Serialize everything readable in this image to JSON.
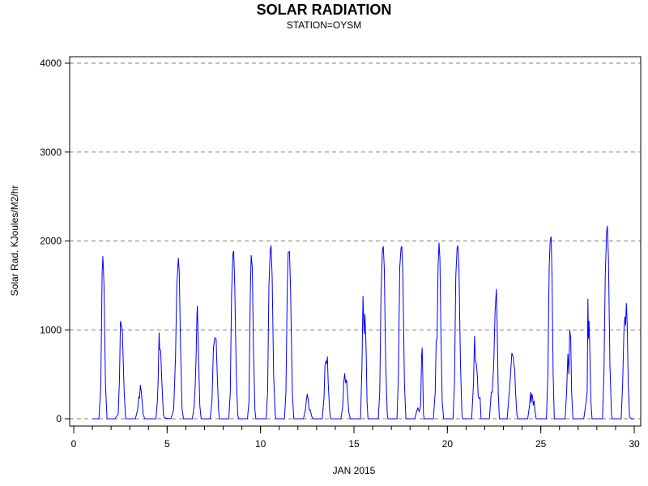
{
  "chart_data": {
    "type": "line",
    "title": "SOLAR RADIATION",
    "subtitle": "STATION=OYSM",
    "xlabel": "JAN 2015",
    "ylabel": "Solar Rad. KJoules/M2/hr",
    "xlim": [
      0,
      30
    ],
    "ylim": [
      0,
      4000
    ],
    "x_ticks": [
      0,
      5,
      10,
      15,
      20,
      25,
      30
    ],
    "y_ticks": [
      0,
      1000,
      2000,
      3000,
      4000
    ],
    "grid": "horizontal-dashed",
    "line_color": "#0000ff",
    "series": [
      {
        "points": [
          [
            1.0,
            0
          ],
          [
            1.35,
            0
          ],
          [
            1.45,
            350
          ],
          [
            1.52,
            1650
          ],
          [
            1.56,
            1830
          ],
          [
            1.62,
            1500
          ],
          [
            1.7,
            400
          ],
          [
            1.78,
            0
          ],
          [
            2.2,
            0
          ],
          [
            2.38,
            50
          ],
          [
            2.45,
            450
          ],
          [
            2.5,
            1100
          ],
          [
            2.55,
            1050
          ],
          [
            2.6,
            1000
          ],
          [
            2.7,
            300
          ],
          [
            2.78,
            0
          ],
          [
            3.3,
            0
          ],
          [
            3.42,
            100
          ],
          [
            3.48,
            250
          ],
          [
            3.52,
            230
          ],
          [
            3.57,
            380
          ],
          [
            3.62,
            300
          ],
          [
            3.72,
            50
          ],
          [
            3.8,
            0
          ],
          [
            4.4,
            0
          ],
          [
            4.48,
            200
          ],
          [
            4.52,
            450
          ],
          [
            4.57,
            970
          ],
          [
            4.6,
            780
          ],
          [
            4.65,
            770
          ],
          [
            4.72,
            400
          ],
          [
            4.8,
            50
          ],
          [
            4.86,
            10
          ],
          [
            5.2,
            0
          ],
          [
            5.35,
            100
          ],
          [
            5.45,
            700
          ],
          [
            5.52,
            1500
          ],
          [
            5.6,
            1810
          ],
          [
            5.65,
            1650
          ],
          [
            5.72,
            800
          ],
          [
            5.8,
            100
          ],
          [
            5.88,
            0
          ],
          [
            6.35,
            0
          ],
          [
            6.45,
            150
          ],
          [
            6.5,
            350
          ],
          [
            6.55,
            700
          ],
          [
            6.6,
            1200
          ],
          [
            6.62,
            1270
          ],
          [
            6.68,
            700
          ],
          [
            6.75,
            150
          ],
          [
            6.82,
            0
          ],
          [
            7.3,
            0
          ],
          [
            7.4,
            200
          ],
          [
            7.48,
            800
          ],
          [
            7.55,
            910
          ],
          [
            7.62,
            900
          ],
          [
            7.68,
            500
          ],
          [
            7.75,
            100
          ],
          [
            7.8,
            0
          ],
          [
            8.3,
            0
          ],
          [
            8.38,
            300
          ],
          [
            8.45,
            1400
          ],
          [
            8.52,
            1850
          ],
          [
            8.56,
            1890
          ],
          [
            8.62,
            1500
          ],
          [
            8.7,
            500
          ],
          [
            8.78,
            50
          ],
          [
            8.82,
            0
          ],
          [
            9.3,
            0
          ],
          [
            9.38,
            200
          ],
          [
            9.45,
            1400
          ],
          [
            9.5,
            1840
          ],
          [
            9.56,
            1700
          ],
          [
            9.62,
            800
          ],
          [
            9.7,
            100
          ],
          [
            9.75,
            0
          ],
          [
            10.3,
            0
          ],
          [
            10.38,
            300
          ],
          [
            10.45,
            1500
          ],
          [
            10.52,
            1900
          ],
          [
            10.56,
            1950
          ],
          [
            10.62,
            1600
          ],
          [
            10.7,
            500
          ],
          [
            10.78,
            50
          ],
          [
            10.82,
            0
          ],
          [
            11.28,
            0
          ],
          [
            11.36,
            300
          ],
          [
            11.43,
            1500
          ],
          [
            11.48,
            1870
          ],
          [
            11.55,
            1880
          ],
          [
            11.6,
            1500
          ],
          [
            11.7,
            300
          ],
          [
            11.78,
            0
          ],
          [
            12.3,
            0
          ],
          [
            12.4,
            100
          ],
          [
            12.45,
            200
          ],
          [
            12.5,
            280
          ],
          [
            12.55,
            220
          ],
          [
            12.6,
            100
          ],
          [
            12.66,
            100
          ],
          [
            12.75,
            20
          ],
          [
            12.82,
            0
          ],
          [
            13.3,
            0
          ],
          [
            13.4,
            250
          ],
          [
            13.45,
            600
          ],
          [
            13.5,
            650
          ],
          [
            13.55,
            620
          ],
          [
            13.58,
            700
          ],
          [
            13.62,
            400
          ],
          [
            13.7,
            80
          ],
          [
            13.75,
            0
          ],
          [
            14.3,
            0
          ],
          [
            14.4,
            150
          ],
          [
            14.45,
            400
          ],
          [
            14.5,
            510
          ],
          [
            14.55,
            400
          ],
          [
            14.6,
            440
          ],
          [
            14.65,
            300
          ],
          [
            14.72,
            80
          ],
          [
            14.8,
            0
          ],
          [
            15.35,
            0
          ],
          [
            15.43,
            600
          ],
          [
            15.48,
            1380
          ],
          [
            15.52,
            1100
          ],
          [
            15.55,
            950
          ],
          [
            15.58,
            1180
          ],
          [
            15.62,
            1000
          ],
          [
            15.66,
            700
          ],
          [
            15.7,
            200
          ],
          [
            15.75,
            0
          ],
          [
            16.3,
            0
          ],
          [
            16.38,
            300
          ],
          [
            16.45,
            1400
          ],
          [
            16.52,
            1900
          ],
          [
            16.57,
            1940
          ],
          [
            16.62,
            1700
          ],
          [
            16.7,
            600
          ],
          [
            16.78,
            50
          ],
          [
            16.82,
            0
          ],
          [
            17.3,
            0
          ],
          [
            17.38,
            500
          ],
          [
            17.45,
            1700
          ],
          [
            17.52,
            1920
          ],
          [
            17.56,
            1940
          ],
          [
            17.62,
            1600
          ],
          [
            17.7,
            400
          ],
          [
            17.78,
            0
          ],
          [
            18.25,
            0
          ],
          [
            18.35,
            80
          ],
          [
            18.42,
            120
          ],
          [
            18.5,
            80
          ],
          [
            18.57,
            150
          ],
          [
            18.62,
            700
          ],
          [
            18.65,
            800
          ],
          [
            18.68,
            500
          ],
          [
            18.72,
            50
          ],
          [
            18.76,
            0
          ],
          [
            19.25,
            0
          ],
          [
            19.35,
            300
          ],
          [
            19.4,
            880
          ],
          [
            19.45,
            900
          ],
          [
            19.5,
            1700
          ],
          [
            19.55,
            1980
          ],
          [
            19.6,
            1800
          ],
          [
            19.65,
            1000
          ],
          [
            19.72,
            200
          ],
          [
            19.8,
            0
          ],
          [
            20.3,
            0
          ],
          [
            20.38,
            400
          ],
          [
            20.45,
            1600
          ],
          [
            20.52,
            1920
          ],
          [
            20.56,
            1950
          ],
          [
            20.62,
            1700
          ],
          [
            20.7,
            600
          ],
          [
            20.78,
            50
          ],
          [
            20.82,
            0
          ],
          [
            21.3,
            0
          ],
          [
            21.4,
            400
          ],
          [
            21.45,
            930
          ],
          [
            21.5,
            650
          ],
          [
            21.55,
            620
          ],
          [
            21.6,
            500
          ],
          [
            21.65,
            250
          ],
          [
            21.7,
            230
          ],
          [
            21.75,
            240
          ],
          [
            21.8,
            0
          ],
          [
            22.25,
            0
          ],
          [
            22.35,
            300
          ],
          [
            22.4,
            300
          ],
          [
            22.48,
            600
          ],
          [
            22.55,
            1200
          ],
          [
            22.62,
            1460
          ],
          [
            22.66,
            1100
          ],
          [
            22.72,
            300
          ],
          [
            22.78,
            0
          ],
          [
            23.2,
            0
          ],
          [
            23.35,
            400
          ],
          [
            23.45,
            740
          ],
          [
            23.52,
            700
          ],
          [
            23.56,
            600
          ],
          [
            23.6,
            560
          ],
          [
            23.65,
            300
          ],
          [
            23.72,
            50
          ],
          [
            23.78,
            0
          ],
          [
            24.3,
            0
          ],
          [
            24.4,
            150
          ],
          [
            24.45,
            300
          ],
          [
            24.48,
            180
          ],
          [
            24.52,
            280
          ],
          [
            24.56,
            250
          ],
          [
            24.6,
            150
          ],
          [
            24.64,
            200
          ],
          [
            24.68,
            100
          ],
          [
            24.75,
            0
          ],
          [
            25.3,
            0
          ],
          [
            25.38,
            500
          ],
          [
            25.45,
            1700
          ],
          [
            25.5,
            2000
          ],
          [
            25.55,
            2050
          ],
          [
            25.6,
            1600
          ],
          [
            25.66,
            500
          ],
          [
            25.72,
            0
          ],
          [
            26.3,
            0
          ],
          [
            26.38,
            300
          ],
          [
            26.45,
            730
          ],
          [
            26.5,
            500
          ],
          [
            26.55,
            1000
          ],
          [
            26.6,
            900
          ],
          [
            26.65,
            300
          ],
          [
            26.72,
            0
          ],
          [
            27.3,
            0
          ],
          [
            27.4,
            150
          ],
          [
            27.48,
            300
          ],
          [
            27.52,
            1350
          ],
          [
            27.55,
            900
          ],
          [
            27.58,
            1100
          ],
          [
            27.62,
            800
          ],
          [
            27.68,
            200
          ],
          [
            27.74,
            0
          ],
          [
            28.3,
            0
          ],
          [
            28.38,
            500
          ],
          [
            28.45,
            1600
          ],
          [
            28.52,
            2100
          ],
          [
            28.56,
            2170
          ],
          [
            28.62,
            1800
          ],
          [
            28.7,
            600
          ],
          [
            28.78,
            50
          ],
          [
            28.82,
            0
          ],
          [
            29.3,
            0
          ],
          [
            29.38,
            400
          ],
          [
            29.45,
            1000
          ],
          [
            29.5,
            1150
          ],
          [
            29.54,
            1050
          ],
          [
            29.58,
            1300
          ],
          [
            29.62,
            1100
          ],
          [
            29.68,
            400
          ],
          [
            29.75,
            20
          ],
          [
            29.85,
            0
          ],
          [
            30.0,
            0
          ]
        ]
      }
    ]
  }
}
